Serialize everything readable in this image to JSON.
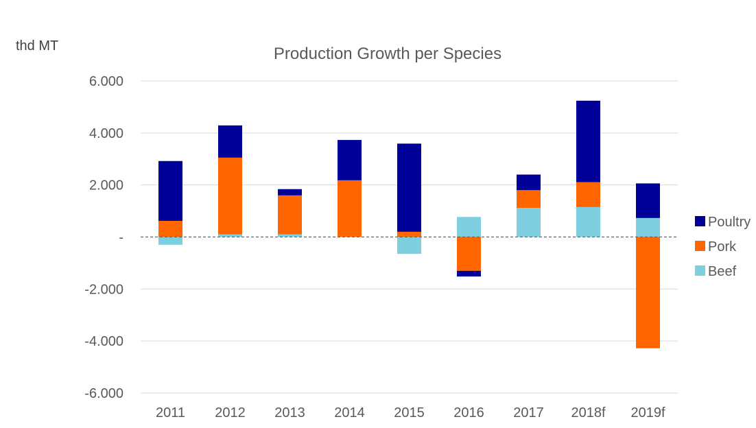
{
  "chart_data": {
    "type": "bar",
    "stacked": true,
    "title": "Production Growth per Species",
    "unit_label": "thd MT",
    "categories": [
      "2011",
      "2012",
      "2013",
      "2014",
      "2015",
      "2016",
      "2017",
      "2018f",
      "2019f"
    ],
    "series": [
      {
        "name": "Beef",
        "color": "#7ed0e1",
        "values": [
          -300,
          100,
          100,
          0,
          -650,
          770,
          1120,
          1150,
          730
        ]
      },
      {
        "name": "Pork",
        "color": "#ff6600",
        "values": [
          620,
          2950,
          1500,
          2180,
          200,
          -1300,
          680,
          960,
          -4280
        ]
      },
      {
        "name": "Poultry",
        "color": "#000099",
        "values": [
          2300,
          1240,
          240,
          1550,
          3390,
          -220,
          600,
          3130,
          1330
        ]
      }
    ],
    "legend_order": [
      "Poultry",
      "Pork",
      "Beef"
    ],
    "legend_position": "right",
    "ylim": [
      -6000,
      6000
    ],
    "yticks": [
      {
        "value": 6000,
        "label": "6.000"
      },
      {
        "value": 4000,
        "label": "4.000"
      },
      {
        "value": 2000,
        "label": "2.000"
      },
      {
        "value": 0,
        "label": "-"
      },
      {
        "value": -2000,
        "label": "-2.000"
      },
      {
        "value": -4000,
        "label": "-4.000"
      },
      {
        "value": -6000,
        "label": "-6.000"
      }
    ],
    "grid": true,
    "zero_line": "dashed"
  }
}
